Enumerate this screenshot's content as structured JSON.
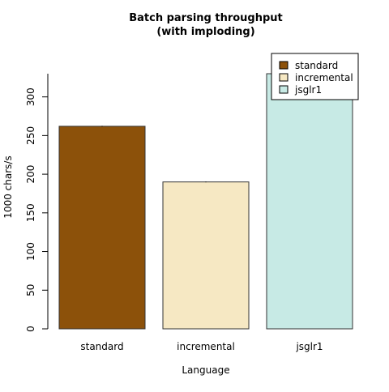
{
  "chart_data": {
    "type": "bar",
    "title": [
      "Batch parsing throughput",
      "(with imploding)"
    ],
    "xlabel": "Language",
    "ylabel": "1000 chars/s",
    "categories": [
      "standard",
      "incremental",
      "jsglr1"
    ],
    "values": [
      262,
      190,
      330
    ],
    "errors": [
      0.5,
      0.5,
      0
    ],
    "colors": [
      "#8c510a",
      "#f6e8c3",
      "#c7eae5"
    ],
    "ylim": [
      0,
      330
    ],
    "yticks": [
      0,
      50,
      100,
      150,
      200,
      250,
      300
    ],
    "grid": false,
    "legend": {
      "position": "top-right",
      "entries": [
        "standard",
        "incremental",
        "jsglr1"
      ]
    }
  }
}
